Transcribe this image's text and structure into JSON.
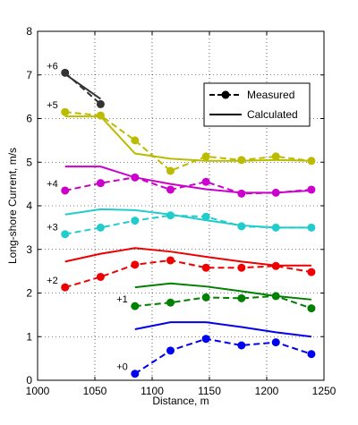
{
  "chart_data": {
    "type": "line",
    "xlabel": "Distance, m",
    "ylabel": "Long-shore Current, m/s",
    "xlim": [
      1000,
      1250
    ],
    "ylim": [
      0,
      8
    ],
    "xticks": [
      1000,
      1050,
      1100,
      1150,
      1200,
      1250
    ],
    "yticks": [
      0,
      1,
      2,
      3,
      4,
      5,
      6,
      7,
      8
    ],
    "grid": "dotted",
    "legend_position": "top-right",
    "legend": [
      {
        "label": "Measured",
        "style": "dashed-marker"
      },
      {
        "label": "Calculated",
        "style": "solid"
      }
    ],
    "series": [
      {
        "offset_label": "+0",
        "color": "#0000ee",
        "measured": {
          "x": [
            1085,
            1116,
            1147,
            1178,
            1208,
            1239
          ],
          "y": [
            0.15,
            0.68,
            0.95,
            0.8,
            0.87,
            0.6
          ]
        },
        "calculated": {
          "x": [
            1085,
            1116,
            1147,
            1178,
            1208,
            1239
          ],
          "y": [
            1.17,
            1.33,
            1.33,
            1.22,
            1.1,
            1.0
          ]
        }
      },
      {
        "offset_label": "+1",
        "color": "#008000",
        "measured": {
          "x": [
            1085,
            1116,
            1147,
            1178,
            1208,
            1239
          ],
          "y": [
            1.7,
            1.78,
            1.9,
            1.88,
            1.93,
            1.65
          ]
        },
        "calculated": {
          "x": [
            1085,
            1116,
            1147,
            1178,
            1208,
            1239
          ],
          "y": [
            2.13,
            2.22,
            2.15,
            2.04,
            1.93,
            1.85
          ]
        }
      },
      {
        "offset_label": "+2",
        "color": "#ee0000",
        "measured": {
          "x": [
            1024,
            1055,
            1085,
            1116,
            1147,
            1178,
            1208,
            1239
          ],
          "y": [
            2.13,
            2.37,
            2.65,
            2.75,
            2.58,
            2.58,
            2.62,
            2.48
          ]
        },
        "calculated": {
          "x": [
            1024,
            1055,
            1085,
            1116,
            1147,
            1178,
            1208,
            1239
          ],
          "y": [
            2.72,
            2.9,
            3.03,
            2.95,
            2.83,
            2.72,
            2.63,
            2.63
          ]
        }
      },
      {
        "offset_label": "+3",
        "color": "#22cccc",
        "measured": {
          "x": [
            1024,
            1055,
            1085,
            1116,
            1147,
            1178,
            1208,
            1239
          ],
          "y": [
            3.35,
            3.5,
            3.66,
            3.78,
            3.75,
            3.53,
            3.5,
            3.5
          ]
        },
        "calculated": {
          "x": [
            1024,
            1055,
            1085,
            1116,
            1147,
            1178,
            1208,
            1239
          ],
          "y": [
            3.8,
            3.92,
            3.9,
            3.8,
            3.67,
            3.55,
            3.5,
            3.5
          ]
        }
      },
      {
        "offset_label": "+4",
        "color": "#cc00cc",
        "measured": {
          "x": [
            1024,
            1055,
            1085,
            1116,
            1147,
            1178,
            1208,
            1239
          ],
          "y": [
            4.35,
            4.52,
            4.65,
            4.37,
            4.55,
            4.28,
            4.3,
            4.37
          ]
        },
        "calculated": {
          "x": [
            1024,
            1055,
            1085,
            1116,
            1147,
            1178,
            1208,
            1239
          ],
          "y": [
            4.9,
            4.9,
            4.65,
            4.5,
            4.38,
            4.3,
            4.3,
            4.35
          ]
        }
      },
      {
        "offset_label": "+5",
        "color": "#bbbb00",
        "measured": {
          "x": [
            1024,
            1055,
            1085,
            1116,
            1147,
            1178,
            1208,
            1239
          ],
          "y": [
            6.15,
            6.07,
            5.5,
            4.8,
            5.13,
            5.05,
            5.13,
            5.03
          ]
        },
        "calculated": {
          "x": [
            1024,
            1055,
            1085,
            1116,
            1147,
            1178,
            1208,
            1239
          ],
          "y": [
            6.05,
            6.05,
            5.2,
            5.08,
            5.03,
            5.03,
            5.05,
            5.03
          ]
        }
      },
      {
        "offset_label": "+6",
        "color": "#333333",
        "measured": {
          "x": [
            1024,
            1055
          ],
          "y": [
            7.05,
            6.33
          ]
        },
        "calculated": {
          "x": [
            1024,
            1055
          ],
          "y": [
            7.02,
            6.45
          ]
        }
      }
    ]
  }
}
